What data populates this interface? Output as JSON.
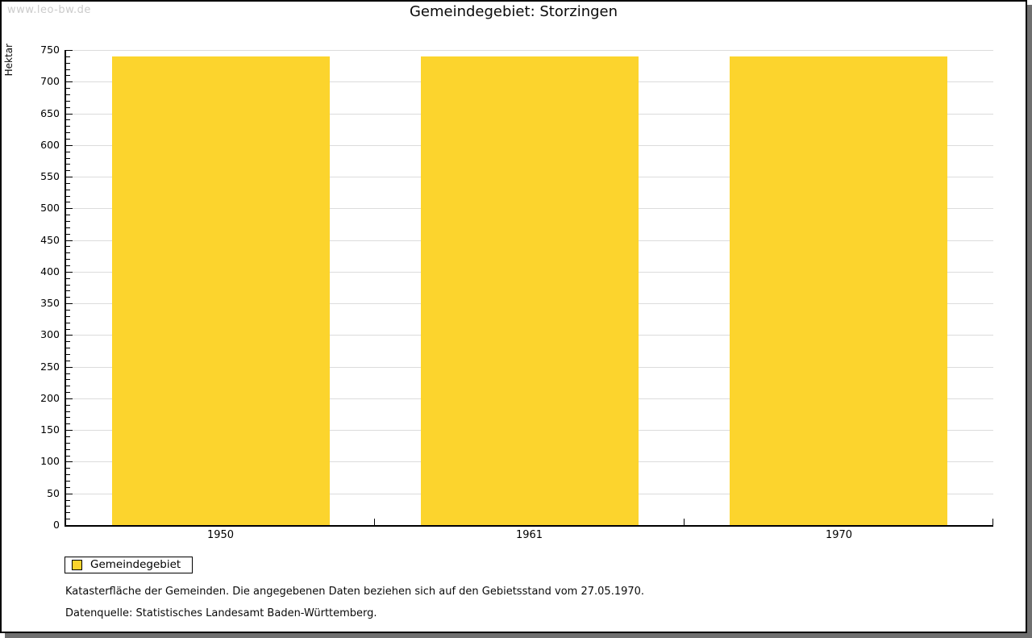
{
  "watermark": "www.leo-bw.de",
  "chart_data": {
    "type": "bar",
    "title": "Gemeindegebiet: Storzingen",
    "xlabel": "",
    "ylabel": "Hektar",
    "categories": [
      "1950",
      "1961",
      "1970"
    ],
    "series": [
      {
        "name": "Gemeindegebiet",
        "values": [
          740,
          740,
          740
        ]
      }
    ],
    "ylim": [
      0,
      750
    ],
    "y_ticks": [
      0,
      50,
      100,
      150,
      200,
      250,
      300,
      350,
      400,
      450,
      500,
      550,
      600,
      650,
      700,
      750
    ],
    "y_minor_step": 10,
    "y_major_step": 50,
    "grid": "horizontal-major-lines",
    "legend_position": "bottom-left",
    "bar_color": "#fcd42d"
  },
  "legend": {
    "items": [
      {
        "label": "Gemeindegebiet",
        "color": "#fcd42d"
      }
    ]
  },
  "footnotes": [
    "Katasterfläche der Gemeinden. Die angegebenen Daten beziehen sich auf den Gebietsstand vom 27.05.1970.",
    "Datenquelle: Statistisches Landesamt Baden-Württemberg."
  ],
  "colors": {
    "bar": "#fcd42d",
    "gridline": "#dcdcdc",
    "axis": "#000000",
    "shadow": "#6f6f6f",
    "watermark_text": "#cbcbcb",
    "background": "#ffffff"
  }
}
